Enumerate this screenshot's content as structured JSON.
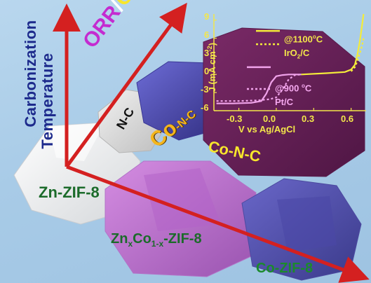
{
  "labels": {
    "vertical_axis": [
      "Carbonization",
      "Temperature"
    ],
    "orr": "ORR",
    "slash": "/",
    "oer": "OER",
    "nc": "N-C",
    "con_main": "Co",
    "con_suffix": "-N-C",
    "con_second": "Co-N-C",
    "zn_zif": "Zn-ZIF-8",
    "znco_prefix": "Zn",
    "znco_sub1": "x",
    "znco_mid": "Co",
    "znco_sub2": "1-x",
    "znco_suffix": "-ZIF-8",
    "co_zif": "Co-ZIF-8"
  },
  "colors": {
    "arrow": "#d42020",
    "axis_text": "#1d2a8c",
    "orr": "#c42bd0",
    "oer": "#f7e62c",
    "con": "#f4b51c",
    "zif_green": "#1b6b2a",
    "plot_bg": "#6b1f5a",
    "curve_yellow": "#f4ec3a",
    "curve_pink": "#f0a3ea"
  },
  "inset_chart": {
    "xlabel": "V vs Ag/AgCl",
    "ylabel_main": "J (mA cm",
    "ylabel_sup": "-2",
    "ylabel_end": ")",
    "xticks": [
      "-0.3",
      "0.0",
      "0.3",
      "0.6"
    ],
    "yticks": [
      "9",
      "6",
      "3",
      "0",
      "-3",
      "-6"
    ],
    "legend": [
      {
        "label_main": "@1100",
        "label_sup": "o",
        "label_end": "C",
        "style": "solid",
        "color": "#f4ec3a"
      },
      {
        "label_main": "IrO",
        "label_sub": "2",
        "label_end": "/C",
        "style": "dotted",
        "color": "#f4ec3a"
      },
      {
        "label_main": "@900 ",
        "label_sup": "o",
        "label_end": "C",
        "style": "solid",
        "color": "#f0a3ea"
      },
      {
        "label_main": "Pt/C",
        "style": "dotted",
        "color": "#f0a3ea"
      }
    ]
  },
  "chart_data": {
    "type": "line",
    "xlabel": "V vs Ag/AgCl",
    "ylabel": "J (mA cm-2)",
    "xlim": [
      -0.5,
      0.72
    ],
    "ylim": [
      -6,
      10
    ],
    "series": [
      {
        "name": "@1100 oC",
        "style": "solid",
        "x": [
          0.2,
          0.4,
          0.55,
          0.6,
          0.63,
          0.65,
          0.67,
          0.69,
          0.7
        ],
        "y": [
          0.0,
          0.2,
          0.4,
          0.8,
          1.6,
          3.2,
          5.5,
          8.5,
          10.0
        ]
      },
      {
        "name": "IrO2/C",
        "style": "dotted",
        "x": [
          0.6,
          0.63,
          0.65,
          0.67,
          0.69,
          0.7
        ],
        "y": [
          0.5,
          1.2,
          2.2,
          3.5,
          5.0,
          6.0
        ]
      },
      {
        "name": "@900 oC",
        "style": "solid",
        "x": [
          -0.48,
          -0.35,
          -0.2,
          -0.12,
          -0.08,
          -0.04,
          0.0,
          0.05,
          0.1,
          0.15,
          0.2
        ],
        "y": [
          -4.8,
          -4.8,
          -4.7,
          -4.4,
          -3.2,
          -1.3,
          -0.3,
          -0.1,
          0.0,
          0.0,
          0.0
        ]
      },
      {
        "name": "Pt/C",
        "style": "dotted",
        "x": [
          -0.48,
          -0.3,
          -0.15,
          -0.05,
          0.0,
          0.05,
          0.1,
          0.15,
          0.2
        ],
        "y": [
          -4.4,
          -4.4,
          -4.3,
          -4.1,
          -3.8,
          -2.5,
          -0.8,
          -0.1,
          0.0
        ]
      }
    ]
  }
}
